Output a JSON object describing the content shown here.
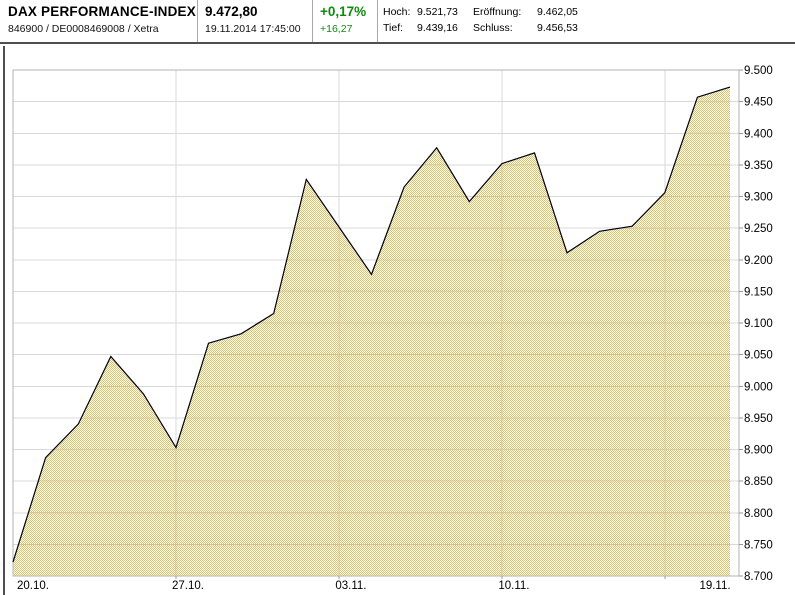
{
  "header": {
    "title": "DAX PERFORMANCE-INDEX",
    "subtitle": "846900 / DE0008469008 / Xetra",
    "price": "9.472,80",
    "datetime": "19.11.2014 17:45:00",
    "change_percent": "+0,17%",
    "change_abs": "+16,27",
    "stats": {
      "hoch_label": "Hoch:",
      "hoch_value": "9.521,73",
      "eroeffnung_label": "Eröffnung:",
      "eroeffnung_value": "9.462,05",
      "tief_label": "Tief:",
      "tief_value": "9.439,16",
      "schluss_label": "Schluss:",
      "schluss_value": "9.456,53"
    },
    "colors": {
      "positive": "#0f8a0f"
    }
  },
  "chart_data": {
    "type": "area",
    "title": "DAX PERFORMANCE-INDEX intraday/1-month price chart",
    "x": [
      "20.10.",
      "21.10.",
      "22.10.",
      "23.10.",
      "24.10.",
      "27.10.",
      "28.10.",
      "29.10.",
      "30.10.",
      "31.10.",
      "03.11.",
      "04.11.",
      "05.11.",
      "06.11.",
      "07.11.",
      "10.11.",
      "11.11.",
      "12.11.",
      "13.11.",
      "14.11.",
      "17.11.",
      "18.11.",
      "19.11."
    ],
    "values": [
      8722,
      8887,
      8940,
      9047,
      8988,
      8903,
      9068,
      9083,
      9115,
      9327,
      9252,
      9177,
      9315,
      9377,
      9292,
      9352,
      9369,
      9211,
      9245,
      9253,
      9306,
      9457,
      9473
    ],
    "ylim": [
      8700,
      9500
    ],
    "y_tick_step": 50,
    "y_tick_labels": [
      "9.500",
      "9.450",
      "9.400",
      "9.350",
      "9.300",
      "9.250",
      "9.200",
      "9.150",
      "9.100",
      "9.050",
      "9.000",
      "8.950",
      "8.900",
      "8.850",
      "8.800",
      "8.750",
      "8.700"
    ],
    "x_tick_labels": [
      "20.10.",
      "27.10.",
      "03.11.",
      "10.11.",
      "19.11."
    ],
    "x_tick_indices": [
      0,
      5,
      10,
      15,
      22
    ],
    "x_gridline_indices": [
      5,
      10,
      15,
      20
    ],
    "grid_on": true,
    "legend": "none",
    "fill_color": "#dfc160",
    "line_color": "#000000",
    "grid_color": "#d9d9d9",
    "grid_color_in_fill": "#e5bb55",
    "border_color": "#b3b3b3",
    "tick_color": "#999999"
  }
}
